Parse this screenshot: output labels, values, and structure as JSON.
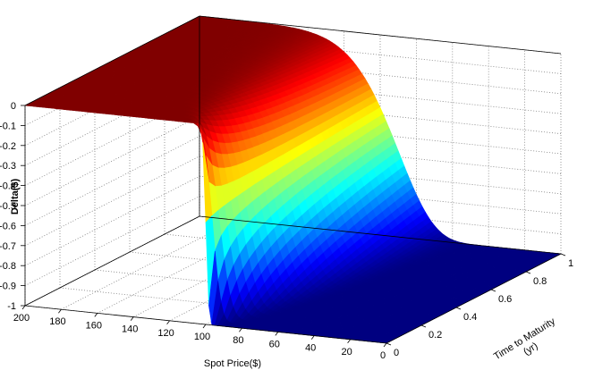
{
  "chart_data": {
    "type": "surface",
    "title": "",
    "xlabel": "Spot Price($)",
    "ylabel_line1": "Time to Maturity",
    "ylabel_line2": "(yr)",
    "zlabel": "Delta($)",
    "x_ticks": [
      "0",
      "20",
      "40",
      "60",
      "80",
      "100",
      "120",
      "140",
      "160",
      "180",
      "200"
    ],
    "y_ticks": [
      "0",
      "0.2",
      "0.4",
      "0.6",
      "0.8",
      "1"
    ],
    "z_ticks": [
      "0",
      "-0.1",
      "-0.2",
      "-0.3",
      "-0.4",
      "-0.5",
      "-0.6",
      "-0.7",
      "-0.8",
      "-0.9",
      "-1"
    ],
    "xlim": [
      0,
      200
    ],
    "ylim": [
      0,
      1
    ],
    "zlim": [
      -1,
      0
    ],
    "grid": true,
    "colormap": "jet",
    "strike": 100,
    "surface_samples": {
      "description_of_axes": "rows = time to maturity (yr), columns = spot price ($), values = delta",
      "spot": [
        0,
        20,
        40,
        60,
        80,
        90,
        95,
        100,
        105,
        110,
        120,
        140,
        160,
        180,
        200
      ],
      "time": [
        0,
        0.2,
        0.4,
        0.6,
        0.8,
        1
      ],
      "delta": [
        [
          -1,
          -1,
          -1,
          -1,
          -1,
          -1,
          -1,
          -0.5,
          0,
          0,
          0,
          0,
          0,
          0,
          0
        ],
        [
          -1,
          -1,
          -1,
          -1,
          -0.98,
          -0.85,
          -0.7,
          -0.5,
          -0.33,
          -0.2,
          -0.05,
          0,
          0,
          0,
          0
        ],
        [
          -1,
          -1,
          -1,
          -1,
          -0.94,
          -0.78,
          -0.64,
          -0.5,
          -0.37,
          -0.26,
          -0.1,
          -0.01,
          0,
          0,
          0
        ],
        [
          -1,
          -1,
          -1,
          -0.99,
          -0.9,
          -0.74,
          -0.62,
          -0.5,
          -0.39,
          -0.29,
          -0.14,
          -0.02,
          0,
          0,
          0
        ],
        [
          -1,
          -1,
          -1,
          -0.99,
          -0.88,
          -0.72,
          -0.61,
          -0.5,
          -0.4,
          -0.31,
          -0.17,
          -0.03,
          0,
          0,
          0
        ],
        [
          -1,
          -1,
          -1,
          -0.98,
          -0.86,
          -0.71,
          -0.6,
          -0.5,
          -0.41,
          -0.33,
          -0.19,
          -0.04,
          0,
          0,
          0
        ]
      ]
    }
  }
}
